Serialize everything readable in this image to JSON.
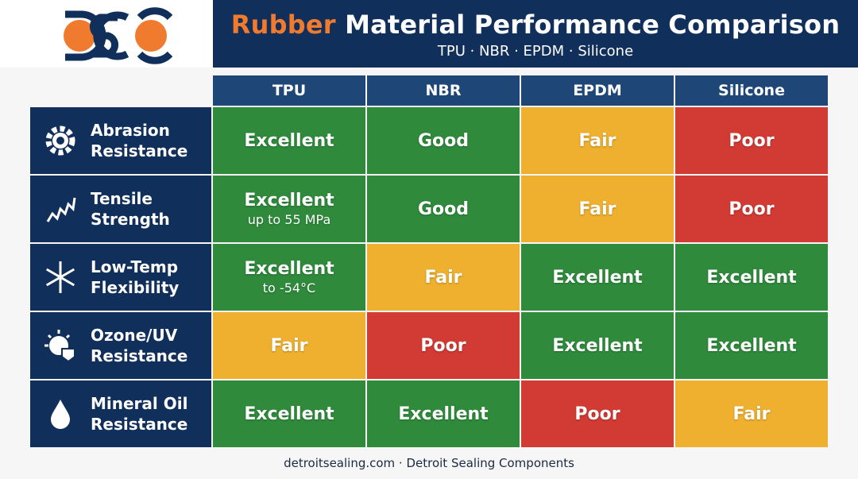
{
  "header": {
    "title_highlight": "Rubber",
    "title_rest": "Material Performance Comparison",
    "subtitle": "TPU · NBR · EPDM · Silicone"
  },
  "table": {
    "columns": [
      "TPU",
      "NBR",
      "EPDM",
      "Silicone"
    ],
    "rows": [
      {
        "label": [
          "Abrasion",
          "Resistance"
        ],
        "cells": [
          {
            "rating": "Excellent",
            "color": "#2f8a3c"
          },
          {
            "rating": "Good",
            "color": "#2f8a3c"
          },
          {
            "rating": "Fair",
            "color": "#eeb02e"
          },
          {
            "rating": "Poor",
            "color": "#d23a34"
          }
        ]
      },
      {
        "label": [
          "Tensile",
          "Strength"
        ],
        "cells": [
          {
            "rating": "Excellent",
            "note": "up to 55 MPa",
            "color": "#2f8a3c"
          },
          {
            "rating": "Good",
            "color": "#2f8a3c"
          },
          {
            "rating": "Fair",
            "color": "#eeb02e"
          },
          {
            "rating": "Poor",
            "color": "#d23a34"
          }
        ]
      },
      {
        "label": [
          "Low-Temp",
          "Flexibility"
        ],
        "cells": [
          {
            "rating": "Excellent",
            "note": "to -54°C",
            "color": "#2f8a3c"
          },
          {
            "rating": "Fair",
            "color": "#eeb02e"
          },
          {
            "rating": "Excellent",
            "color": "#2f8a3c"
          },
          {
            "rating": "Excellent",
            "color": "#2f8a3c"
          }
        ]
      },
      {
        "label": [
          "Ozone/UV",
          "Resistance"
        ],
        "cells": [
          {
            "rating": "Fair",
            "color": "#eeb02e"
          },
          {
            "rating": "Poor",
            "color": "#d23a34"
          },
          {
            "rating": "Excellent",
            "color": "#2f8a3c"
          },
          {
            "rating": "Excellent",
            "color": "#2f8a3c"
          }
        ]
      },
      {
        "label": [
          "Mineral Oil",
          "Resistance"
        ],
        "cells": [
          {
            "rating": "Excellent",
            "color": "#2f8a3c"
          },
          {
            "rating": "Excellent",
            "color": "#2f8a3c"
          },
          {
            "rating": "Poor",
            "color": "#d23a34"
          },
          {
            "rating": "Fair",
            "color": "#eeb02e"
          }
        ]
      }
    ]
  },
  "footer": "detroitsealing.com · Detroit Sealing Components"
}
